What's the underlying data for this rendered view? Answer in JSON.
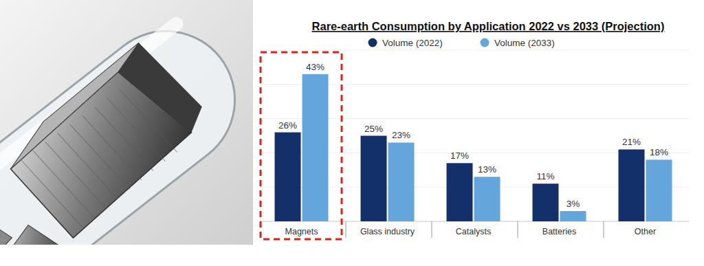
{
  "chart_data": {
    "type": "bar",
    "title": "Rare-earth Consumption by Application 2022 vs 2033 (Projection)",
    "categories": [
      "Magnets",
      "Glass industry",
      "Catalysts",
      "Batteries",
      "Other"
    ],
    "series": [
      {
        "name": "Volume (2022)",
        "color": "#13306b",
        "values": [
          26,
          25,
          17,
          11,
          21
        ],
        "value_labels": [
          "26%",
          "25%",
          "17%",
          "11%",
          "21%"
        ]
      },
      {
        "name": "Volume (2033)",
        "color": "#64a6dc",
        "values": [
          43,
          23,
          13,
          3,
          18
        ],
        "value_labels": [
          "43%",
          "23%",
          "13%",
          "3%",
          "18%"
        ]
      }
    ],
    "ylim": [
      0,
      50
    ],
    "yticks": [
      0,
      10,
      20,
      30,
      40,
      50
    ],
    "grid": true,
    "legend": "top",
    "data_labels": true,
    "tick_labels": false
  }
}
